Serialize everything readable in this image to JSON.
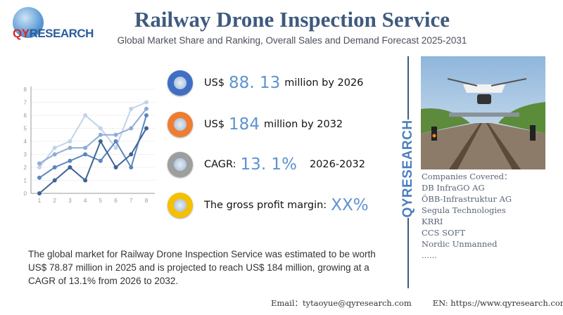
{
  "header": {
    "logo_text": "QYRESEARCH",
    "title": "Railway Drone Inspection Service",
    "subtitle": "Global Market Share and Ranking, Overall Sales and Demand Forecast 2025-2031"
  },
  "stats": [
    {
      "prefix": "US$",
      "value": "88. 13",
      "suffix": "million by 2026",
      "color": "#3f6fc4"
    },
    {
      "prefix": "US$",
      "value": "184",
      "suffix": "million by 2032",
      "color": "#ef7d31"
    },
    {
      "prefix": "CAGR:",
      "value": "13. 1%",
      "suffix": "2026-2032",
      "color": "#9e9e9e"
    },
    {
      "prefix": "The gross profit margin:",
      "value": "XX%",
      "suffix": "",
      "color": "#f5c000"
    }
  ],
  "description": "The global market for Railway Drone Inspection Service was estimated to be worth US$ 78.87 million in 2025 and is projected to reach US$ 184 million, growing at a CAGR of 13.1% from 2026 to 2032.",
  "side": {
    "brand": "QYRESEARCH",
    "companies_title": "Companies Covered：",
    "companies": [
      "DB InfraGO AG",
      "ÖBB-Infrastruktur AG",
      "Segula Technologies",
      "KRRI",
      "CCS SOFT",
      "Nordic Unmanned",
      "......"
    ]
  },
  "footer": {
    "email": "Email：tytaoyue@qyresearch.com",
    "website": "EN: https://www.qyresearch.com"
  },
  "chart_data": {
    "type": "line",
    "x": [
      1,
      2,
      3,
      4,
      5,
      6,
      7,
      8
    ],
    "xlim": [
      1,
      8
    ],
    "ylim": [
      0,
      8
    ],
    "yticks": [
      0,
      1,
      2,
      3,
      4,
      5,
      6,
      7,
      8
    ],
    "grid": true,
    "series": [
      {
        "values": [
          2,
          3.5,
          4,
          6,
          5,
          3.5,
          6.5,
          7
        ],
        "color": "#c3d3e8"
      },
      {
        "values": [
          2.3,
          3,
          3.5,
          3.5,
          4.5,
          4.5,
          5,
          6.5
        ],
        "color": "#8eadd6"
      },
      {
        "values": [
          1.2,
          2,
          2.5,
          3,
          2.5,
          4,
          2,
          6
        ],
        "color": "#5b86bf"
      },
      {
        "values": [
          0,
          1,
          2,
          1,
          4,
          2,
          3,
          5
        ],
        "color": "#3e6496"
      }
    ]
  }
}
